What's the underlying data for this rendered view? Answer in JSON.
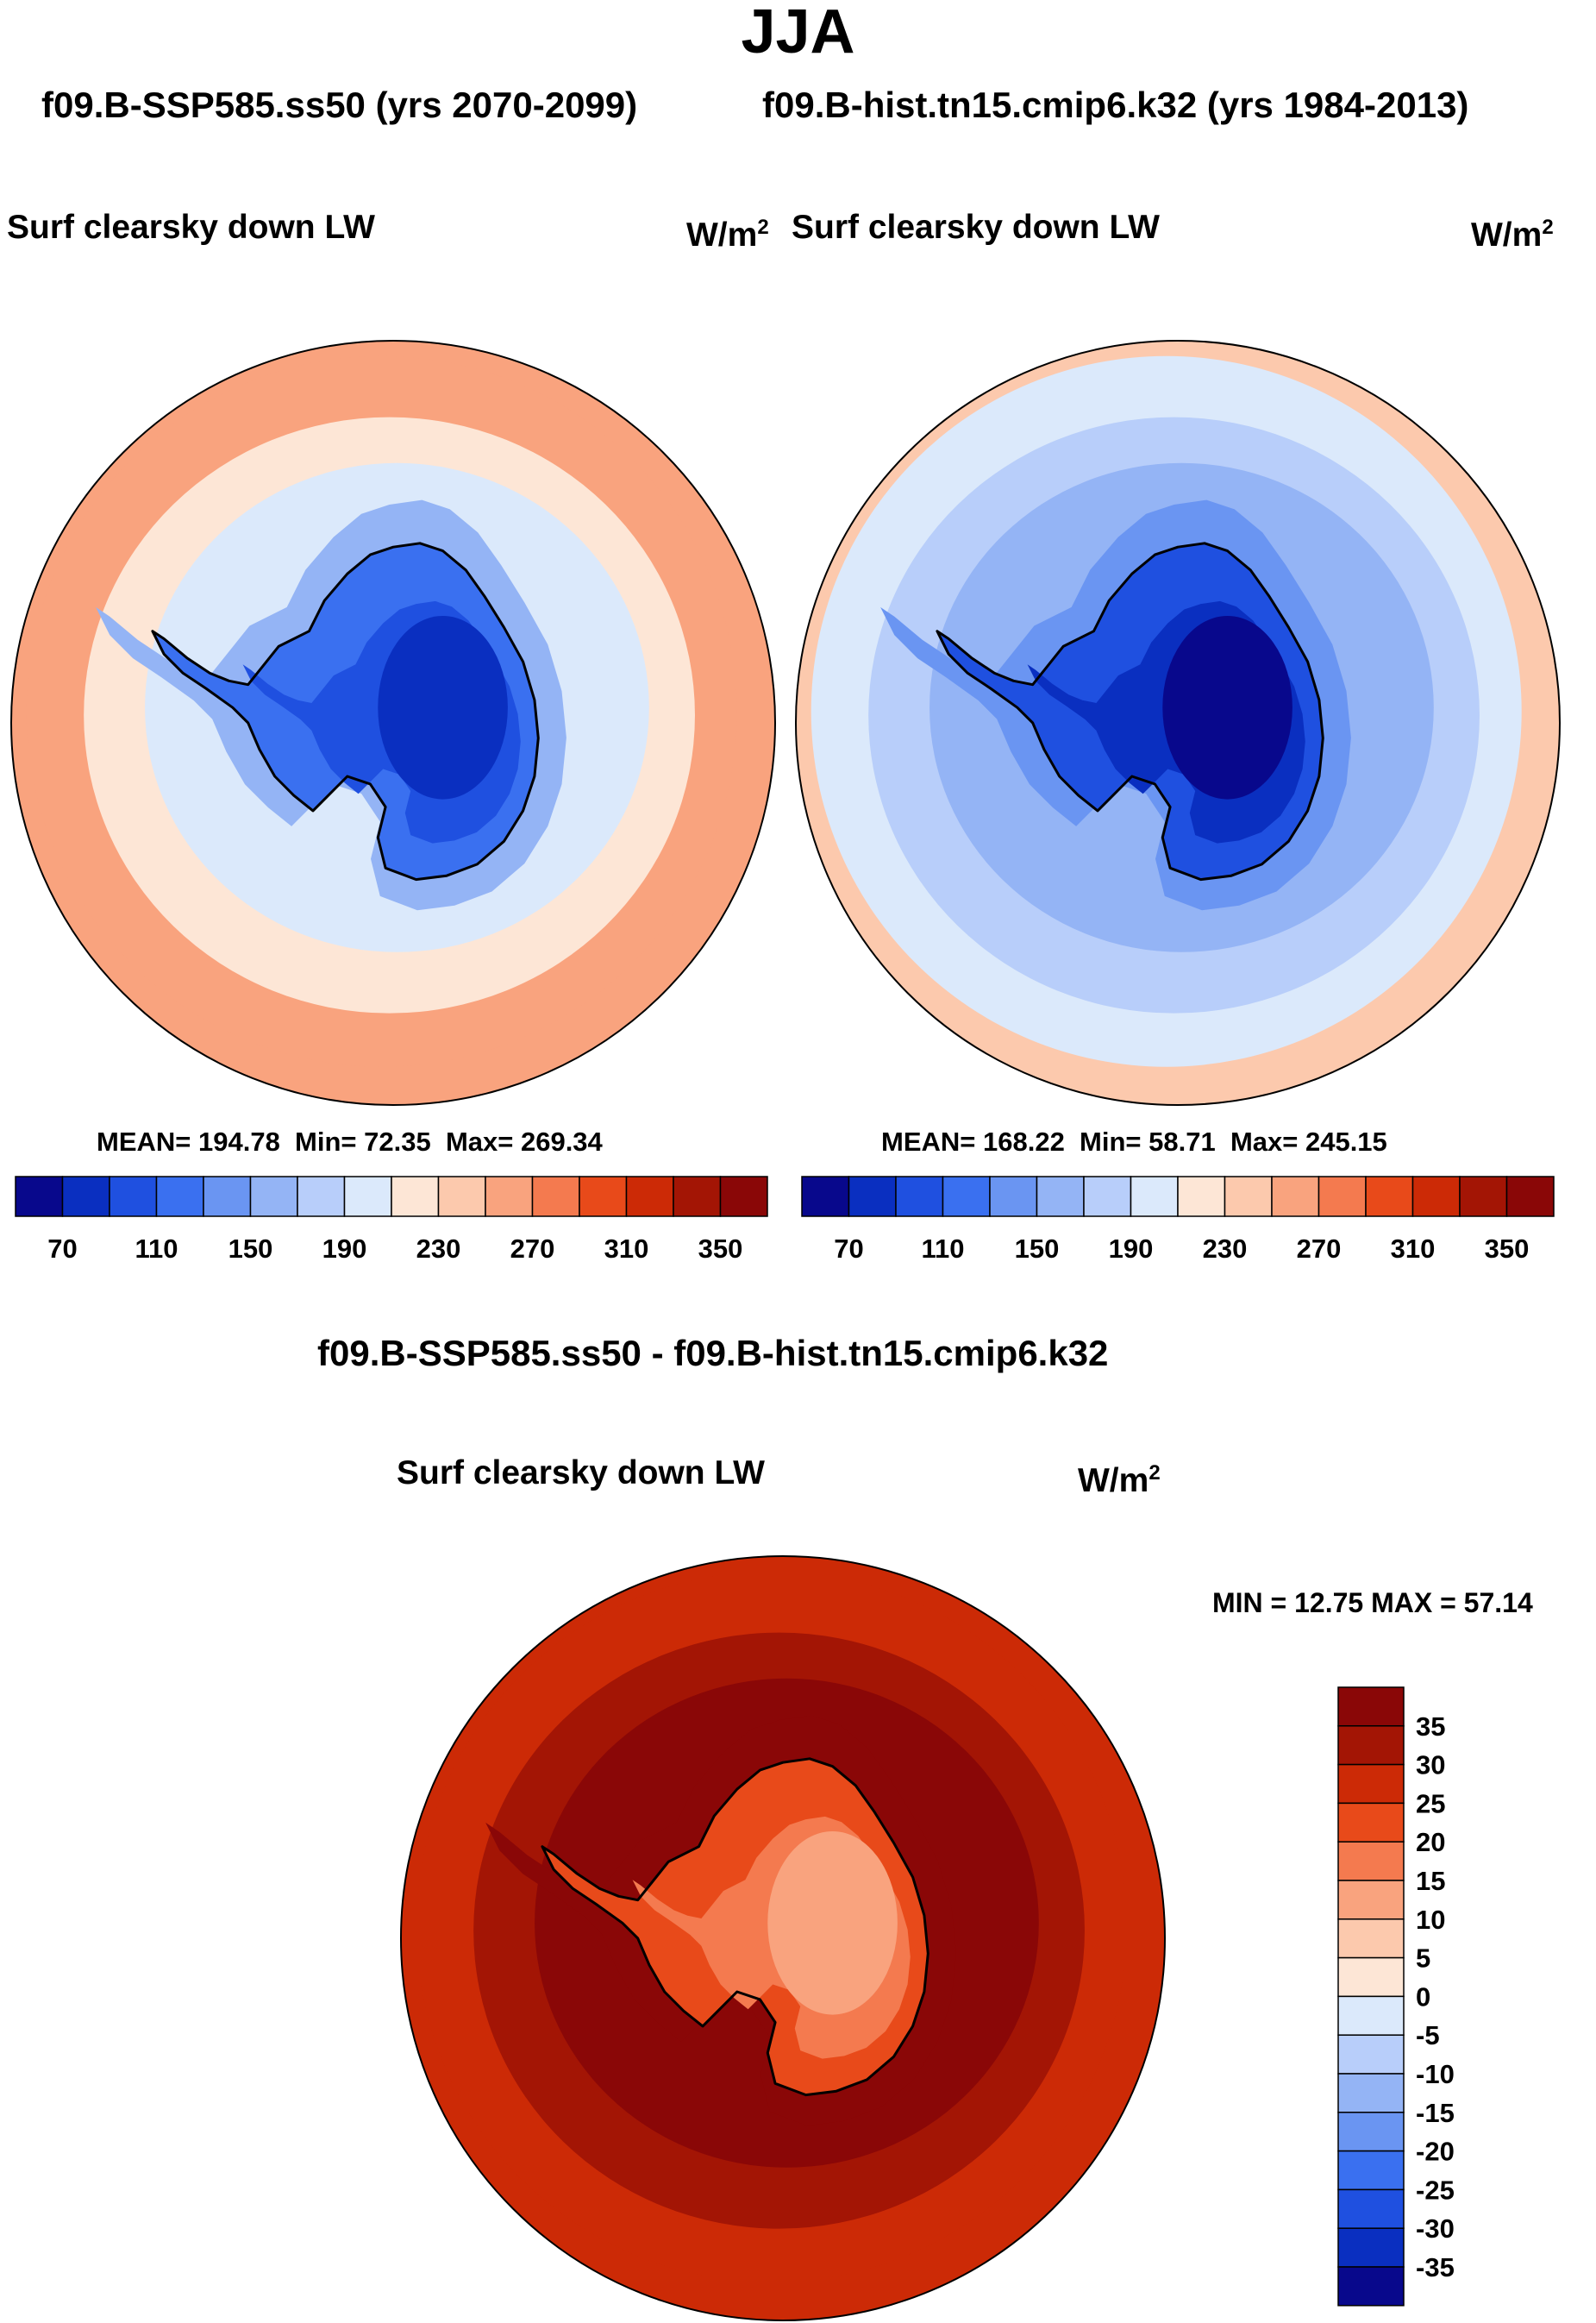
{
  "figure": {
    "title": "JJA",
    "subtitle_left": "f09.B-SSP585.ss50 (yrs 2070-2099)",
    "subtitle_right": "f09.B-hist.tn15.cmip6.k32 (yrs 1984-2013)",
    "diff_title": "f09.B-SSP585.ss50 - f09.B-hist.tn15.cmip6.k32"
  },
  "chart_data": [
    {
      "type": "heatmap",
      "projection": "south polar stereographic",
      "case": "f09.B-SSP585.ss50 (yrs 2070-2099)",
      "variable": "Surf clearsky down LW",
      "units": "W/m",
      "units_exp": "2",
      "stats": {
        "mean": 194.78,
        "min": 72.35,
        "max": 269.34
      },
      "stats_text": {
        "mean": "MEAN= 194.78",
        "min": "Min=  72.35",
        "max": "Max= 269.34"
      },
      "colorbar_levels": [
        70,
        90,
        110,
        130,
        150,
        170,
        190,
        210,
        230,
        250,
        270,
        290,
        310,
        330,
        350
      ],
      "colorbar_labels": [
        "70",
        "110",
        "150",
        "190",
        "230",
        "270",
        "310",
        "350"
      ],
      "zones": {
        "continent_interior": 75,
        "continent_plateau": 95,
        "continent_coast": 120,
        "near_ice": 160,
        "sea_ice": 195,
        "ring_outer": 225,
        "ocean": 250,
        "outer_ocean": 268
      }
    },
    {
      "type": "heatmap",
      "projection": "south polar stereographic",
      "case": "f09.B-hist.tn15.cmip6.k32 (yrs 1984-2013)",
      "variable": "Surf clearsky down LW",
      "units": "W/m",
      "units_exp": "2",
      "stats": {
        "mean": 168.22,
        "min": 58.71,
        "max": 245.15
      },
      "stats_text": {
        "mean": "MEAN= 168.22",
        "min": "Min=  58.71",
        "max": "Max= 245.15"
      },
      "colorbar_levels": [
        70,
        90,
        110,
        130,
        150,
        170,
        190,
        210,
        230,
        250,
        270,
        290,
        310,
        330,
        350
      ],
      "colorbar_labels": [
        "70",
        "110",
        "150",
        "190",
        "230",
        "270",
        "310",
        "350"
      ],
      "zones": {
        "continent_interior": 60,
        "continent_plateau": 80,
        "continent_coast": 100,
        "near_ice": 135,
        "sea_ice": 165,
        "ring_outer": 185,
        "ocean": 205,
        "outer_ocean": 230
      }
    },
    {
      "type": "heatmap",
      "projection": "south polar stereographic",
      "case": "f09.B-SSP585.ss50 - f09.B-hist.tn15.cmip6.k32",
      "variable": "Surf clearsky down LW",
      "units": "W/m",
      "units_exp": "2",
      "stats": {
        "min": 12.75,
        "max": 57.14
      },
      "stats_text": "MIN =  12.75 MAX =  57.14",
      "colorbar_levels": [
        -35,
        -30,
        -25,
        -20,
        -15,
        -10,
        -5,
        0,
        5,
        10,
        15,
        20,
        25,
        30,
        35
      ],
      "colorbar_labels": [
        "35",
        "30",
        "25",
        "20",
        "15",
        "10",
        "5",
        "0",
        "-5",
        "-10",
        "-15",
        "-20",
        "-25",
        "-30",
        "-35"
      ],
      "zones": {
        "continent_interior": 14,
        "continent_plateau": 17,
        "continent_coast": 23,
        "near_ice": 36,
        "sea_ice": 40,
        "ring_outer": 32,
        "ocean": 26,
        "outer_ocean": 26
      }
    }
  ],
  "palette": [
    "#08088c",
    "#0a2fc0",
    "#1f50e0",
    "#3a70f0",
    "#6a95f2",
    "#94b4f5",
    "#b8cefa",
    "#dbe9fb",
    "#fde6d6",
    "#fcc9ad",
    "#f9a37e",
    "#f47a4f",
    "#e84a1a",
    "#cc2a06",
    "#a31505",
    "#8a0707"
  ]
}
